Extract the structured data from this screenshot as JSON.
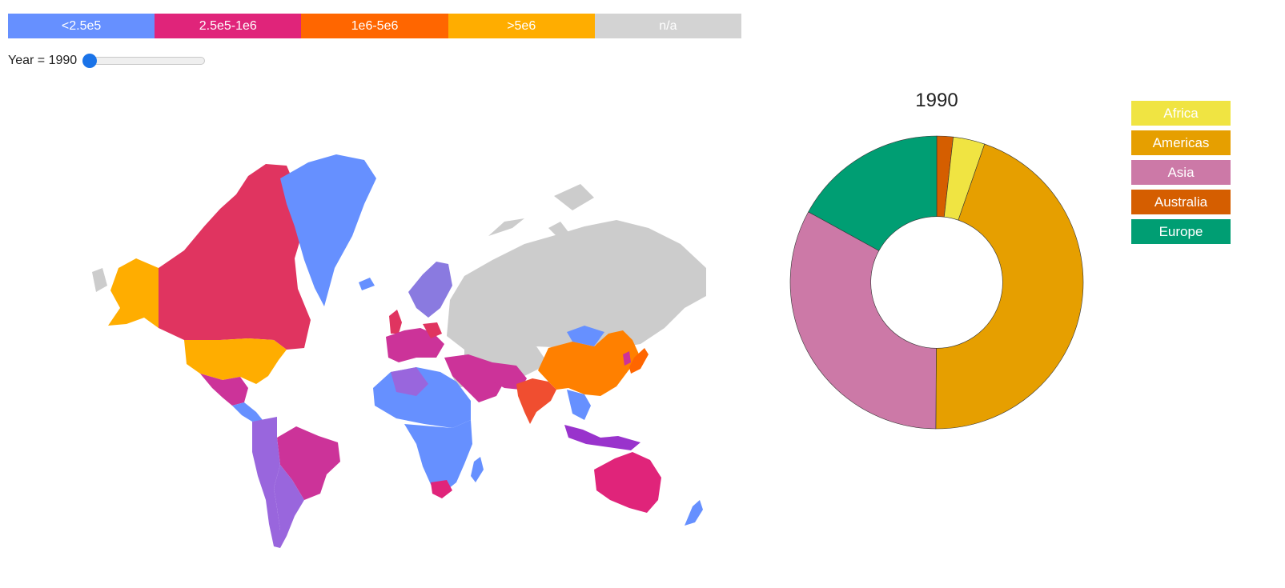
{
  "scale_legend": [
    {
      "label": "<2.5e5",
      "color": "#6690ff"
    },
    {
      "label": "2.5e5-1e6",
      "color": "#e0247a"
    },
    {
      "label": "1e6-5e6",
      "color": "#ff6600"
    },
    {
      "label": ">5e6",
      "color": "#ffad00"
    },
    {
      "label": "n/a",
      "color": "#d3d3d3"
    }
  ],
  "slider": {
    "label": "Year = 1990",
    "value": 1990
  },
  "continent_legend": [
    {
      "label": "Africa",
      "color": "#f0e442"
    },
    {
      "label": "Americas",
      "color": "#e69f00"
    },
    {
      "label": "Asia",
      "color": "#cc79a7"
    },
    {
      "label": "Australia",
      "color": "#d55e00"
    },
    {
      "label": "Europe",
      "color": "#009e73"
    }
  ],
  "chart_data": {
    "type": "pie",
    "title": "1990",
    "hole": 0.45,
    "slices": [
      {
        "category": "Australia",
        "value": 1.8
      },
      {
        "category": "Africa",
        "value": 3.5
      },
      {
        "category": "Americas",
        "value": 44.8
      },
      {
        "category": "Asia",
        "value": 32.9
      },
      {
        "category": "Europe",
        "value": 17.0
      }
    ]
  }
}
